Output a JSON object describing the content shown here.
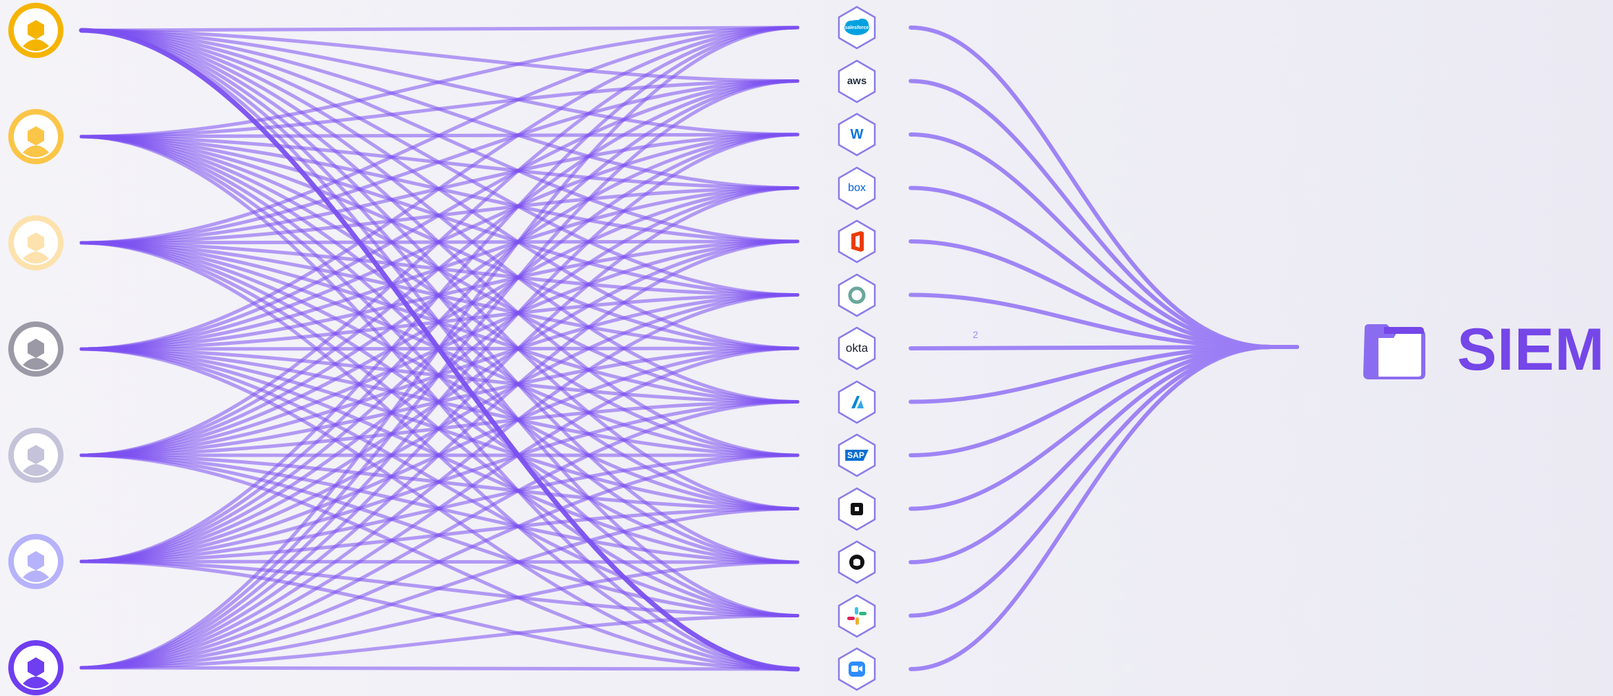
{
  "sources": [
    {
      "name": "source-1",
      "outer": "#f5b400",
      "inner": "#f5b400",
      "ring": "#ffffff"
    },
    {
      "name": "source-2",
      "outer": "#fbc548",
      "inner": "#fbc548",
      "ring": "#ffffff"
    },
    {
      "name": "source-3",
      "outer": "#fde2ad",
      "inner": "#fde2ad",
      "ring": "#ffffff"
    },
    {
      "name": "source-4",
      "outer": "#9b99a6",
      "inner": "#9b99a6",
      "ring": "#ffffff"
    },
    {
      "name": "source-5",
      "outer": "#c4c3d9",
      "inner": "#c4c3d9",
      "ring": "#ffffff"
    },
    {
      "name": "source-6",
      "outer": "#b6b2fb",
      "inner": "#b6b2fb",
      "ring": "#ffffff"
    },
    {
      "name": "source-7",
      "outer": "#6f3ef0",
      "inner": "#6f3ef0",
      "ring": "#ffffff"
    }
  ],
  "apps": [
    {
      "name": "salesforce",
      "label": "salesforce",
      "icon": "salesforce-icon",
      "color": "#00a1e0"
    },
    {
      "name": "aws",
      "label": "aws",
      "icon": "aws-icon",
      "color": "#232f3e"
    },
    {
      "name": "workday",
      "label": "W",
      "icon": "workday-icon",
      "color": "#0875e1"
    },
    {
      "name": "box",
      "label": "box",
      "icon": "box-icon",
      "color": "#0061d5"
    },
    {
      "name": "office",
      "label": "",
      "icon": "office-icon",
      "color": "#eb3c00"
    },
    {
      "name": "app-ring",
      "label": "",
      "icon": "ring-icon",
      "color": "#6aa79a"
    },
    {
      "name": "okta",
      "label": "okta",
      "icon": "okta-icon",
      "color": "#1a1a2e"
    },
    {
      "name": "azure",
      "label": "",
      "icon": "azure-icon",
      "color": "#0089d6"
    },
    {
      "name": "sap",
      "label": "SAP",
      "icon": "sap-icon",
      "color": "#0a6ed1"
    },
    {
      "name": "square",
      "label": "",
      "icon": "square-icon",
      "color": "#111111"
    },
    {
      "name": "github",
      "label": "",
      "icon": "github-icon",
      "color": "#111111"
    },
    {
      "name": "slack",
      "label": "",
      "icon": "slack-icon",
      "color": "#e01e5a"
    },
    {
      "name": "zoom",
      "label": "",
      "icon": "zoom-icon",
      "color": "#2d8cff"
    }
  ],
  "edge_label": "2",
  "destination": {
    "title": "SIEM",
    "icon": "folder-icon",
    "color": "#7546e8"
  },
  "colors": {
    "flow": "#7b50f0",
    "flow_light": "#9a7df4",
    "hex_border": "#8a7ce8"
  }
}
